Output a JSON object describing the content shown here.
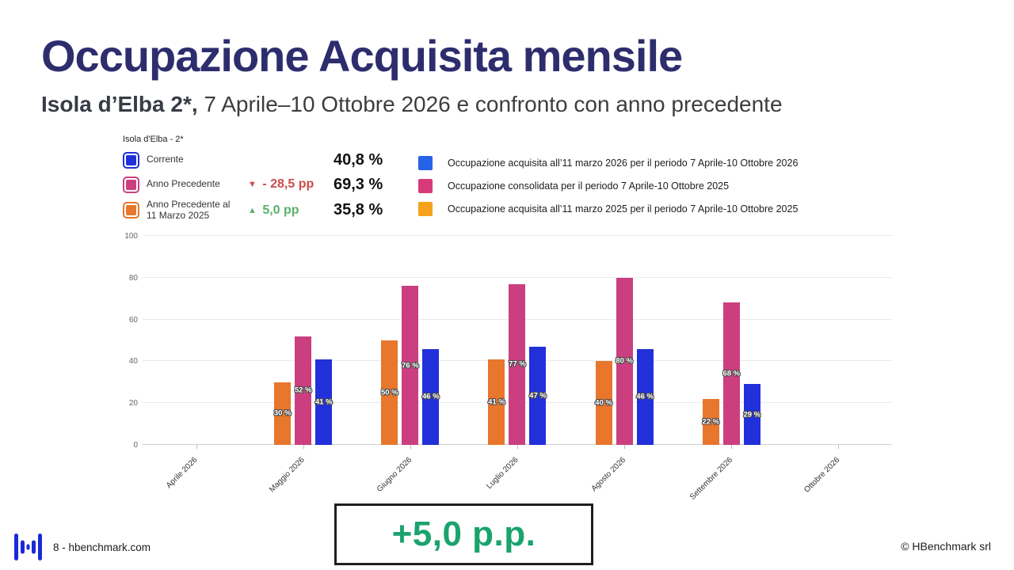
{
  "slide": {
    "title": "Occupazione Acquisita mensile",
    "subtitle_bold": "Isola d’Elba 2*,",
    "subtitle_rest": " 7 Aprile–10 Ottobre 2026 e confronto con anno precedente"
  },
  "summary_panel": {
    "header": "Isola d'Elba - 2*",
    "rows": [
      {
        "label": "Corrente",
        "label2": "",
        "swatch_color": "#2230d9",
        "arrow": "",
        "change": "",
        "change_color": "",
        "value": "40,8 %"
      },
      {
        "label": "Anno Precedente",
        "label2": "",
        "swatch_color": "#cb3f80",
        "arrow": "▼",
        "change": "- 28,5 pp",
        "change_color": "#cb4b4b",
        "value": "69,3 %"
      },
      {
        "label": "Anno Precedente al",
        "label2": "11 Marzo 2025",
        "swatch_color": "#e8762d",
        "arrow": "▲",
        "change": "5,0 pp",
        "change_color": "#5cb06c",
        "value": "35,8 %"
      }
    ]
  },
  "legend": {
    "items": [
      {
        "color": "#2563e8",
        "label": "Occupazione acquisita all’11  marzo 2026 per il periodo 7 Aprile-10 Ottobre 2026"
      },
      {
        "color": "#d63a78",
        "label": "Occupazione consolidata per il periodo 7 Aprile-10 Ottobre 2025"
      },
      {
        "color": "#f6a21d",
        "label": "Occupazione acquisita all’11 marzo 2025 per il periodo 7 Aprile-10 Ottobre 2025"
      }
    ]
  },
  "chart_data": {
    "type": "bar",
    "categories": [
      "Aprile 2026",
      "Maggio 2026",
      "Giugno 2026",
      "Luglio 2026",
      "Agosto 2026",
      "Settembre 2026",
      "Ottobre 2026"
    ],
    "series": [
      {
        "name": "Occupazione acquisita all’11 marzo 2025 per il periodo 7 Aprile-10 Ottobre 2025",
        "color": "#e8762d",
        "values": [
          null,
          30,
          50,
          41,
          40,
          22,
          null
        ]
      },
      {
        "name": "Occupazione consolidata per il periodo 7 Aprile-10 Ottobre 2025",
        "color": "#cb3f80",
        "values": [
          null,
          52,
          76,
          77,
          80,
          68,
          null
        ]
      },
      {
        "name": "Occupazione acquisita all’11 marzo 2026 per il periodo 7 Aprile-10 Ottobre 2026",
        "color": "#2230d9",
        "values": [
          null,
          41,
          46,
          47,
          46,
          29,
          null
        ]
      }
    ],
    "label_format": "{v} %",
    "y_ticks": [
      0,
      20,
      40,
      60,
      80,
      100
    ],
    "ylim": [
      0,
      100
    ],
    "grid": true,
    "legend_position": "top-right",
    "title": "Occupazione Acquisita mensile",
    "xlabel": "",
    "ylabel": ""
  },
  "callout": {
    "text": "+5,0 p.p.",
    "color": "#1aa36d"
  },
  "footer": {
    "page_text": "8 - hbenchmark.com",
    "copyright": "© HBenchmark srl",
    "logo_color": "#1b2ad8"
  }
}
